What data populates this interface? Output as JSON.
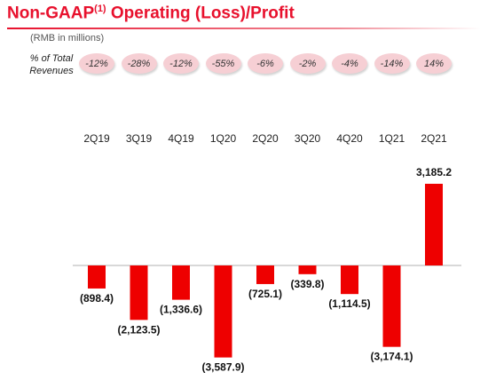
{
  "header": {
    "title_main": "Non-GAAP",
    "title_sup": "(1)",
    "title_rest": " Operating (Loss)/Profit",
    "units": "(RMB in millions)"
  },
  "pct_row": {
    "label_line1": "% of Total",
    "label_line2": "Revenues",
    "values": [
      "-12%",
      "-28%",
      "-12%",
      "-55%",
      "-6%",
      "-2%",
      "-4%",
      "-14%",
      "14%"
    ]
  },
  "colors": {
    "bar": "#ee0000",
    "title": "#e8112d",
    "pill": "#f6cfd4",
    "axis": "#b0b0b0"
  },
  "chart_data": {
    "type": "bar",
    "title": "Non-GAAP(1) Operating (Loss)/Profit",
    "subtitle": "(RMB in millions)",
    "categories": [
      "2Q19",
      "3Q19",
      "4Q19",
      "1Q20",
      "2Q20",
      "3Q20",
      "4Q20",
      "1Q21",
      "2Q21"
    ],
    "values": [
      -898.4,
      -2123.5,
      -1336.6,
      -3587.9,
      -725.1,
      -339.8,
      -1114.5,
      -3174.1,
      3185.2
    ],
    "value_labels": [
      "(898.4)",
      "(2,123.5)",
      "(1,336.6)",
      "(3,587.9)",
      "(725.1)",
      "(339.8)",
      "(1,114.5)",
      "(3,174.1)",
      "3,185.2"
    ],
    "xlabel": "",
    "ylabel": "",
    "grid": false,
    "legend": "none"
  }
}
